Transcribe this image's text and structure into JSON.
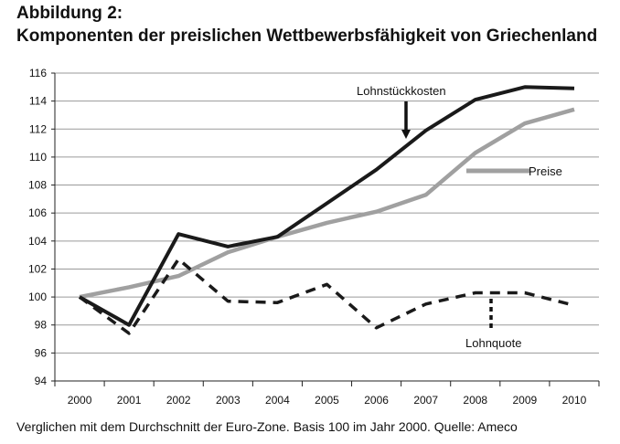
{
  "header": {
    "title_line1": "Abbildung 2:",
    "title_line2": "Komponenten der preislichen Wettbewerbsfähigkeit von Griechenland"
  },
  "caption": "Verglichen mit dem Durchschnitt der Euro-Zone. Basis 100 im Jahr 2000. Quelle: Ameco",
  "chart_data": {
    "type": "line",
    "categories": [
      "2000",
      "2001",
      "2002",
      "2003",
      "2004",
      "2005",
      "2006",
      "2007",
      "2008",
      "2009",
      "2010"
    ],
    "ylim": [
      94,
      116
    ],
    "yticks": [
      94,
      96,
      98,
      100,
      102,
      104,
      106,
      108,
      110,
      112,
      114,
      116
    ],
    "grid": true,
    "series": [
      {
        "name": "Lohnstückkosten",
        "style": "solid",
        "color": "#1a1a1a",
        "values": [
          100.0,
          98.0,
          104.5,
          103.6,
          104.3,
          106.7,
          109.1,
          111.9,
          114.1,
          115.0,
          114.9
        ]
      },
      {
        "name": "Preise",
        "style": "solid",
        "color": "#a0a0a0",
        "values": [
          100.0,
          100.7,
          101.5,
          103.2,
          104.3,
          105.3,
          106.1,
          107.3,
          110.3,
          112.4,
          113.4
        ]
      },
      {
        "name": "Lohnquote",
        "style": "dashed",
        "color": "#1a1a1a",
        "values": [
          100.0,
          97.4,
          102.7,
          99.7,
          99.6,
          100.9,
          97.8,
          99.5,
          100.3,
          100.3,
          99.4
        ]
      }
    ]
  }
}
